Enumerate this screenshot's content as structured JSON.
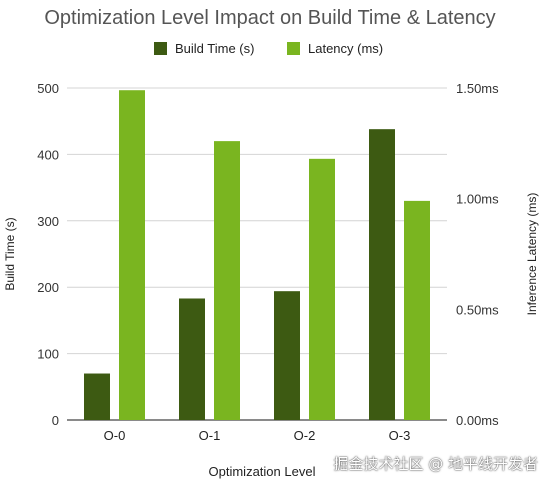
{
  "chart_data": {
    "type": "bar",
    "title": "Optimization Level Impact on Build Time & Latency",
    "xlabel": "Optimization Level",
    "ylabel_left": "Build Time (s)",
    "ylabel_right": "Inference Latency (ms)",
    "categories": [
      "O-0",
      "O-1",
      "O-2",
      "O-3"
    ],
    "series": [
      {
        "name": "Build Time (s)",
        "axis": "left",
        "color": "#3d5a12",
        "values": [
          70,
          183,
          194,
          438
        ]
      },
      {
        "name": "Latency (ms)",
        "axis": "right",
        "color": "#7ab520",
        "values": [
          1.49,
          1.26,
          1.18,
          0.99
        ]
      }
    ],
    "left_axis": {
      "ylim": [
        0,
        500
      ],
      "ticks": [
        "0",
        "100",
        "200",
        "300",
        "400",
        "500"
      ]
    },
    "right_axis": {
      "ylim": [
        0,
        1.5
      ],
      "ticks": [
        "0.00ms",
        "0.50ms",
        "1.00ms",
        "1.50ms"
      ]
    },
    "grid": true,
    "legend_position": "top-center"
  },
  "watermark": "掘金技术社区 @ 地平线开发者"
}
